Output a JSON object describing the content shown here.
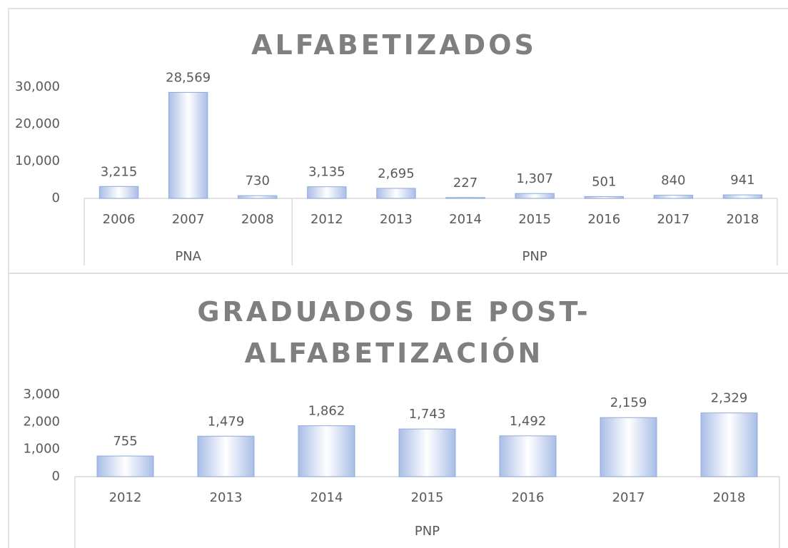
{
  "chart_data": [
    {
      "type": "bar",
      "title": "ALFABETIZADOS",
      "groups": [
        {
          "name": "PNA",
          "categories": [
            "2006",
            "2007",
            "2008"
          ]
        },
        {
          "name": "PNP",
          "categories": [
            "2012",
            "2013",
            "2014",
            "2015",
            "2016",
            "2017",
            "2018"
          ]
        }
      ],
      "values": [
        3215,
        28569,
        730,
        3135,
        2695,
        227,
        1307,
        501,
        840,
        941
      ],
      "value_labels": [
        "3,215",
        "28,569",
        "730",
        "3,135",
        "2,695",
        "227",
        "1,307",
        "501",
        "840",
        "941"
      ],
      "color": "#8faadc",
      "ylim": [
        0,
        30000
      ],
      "yticks": [
        0,
        {
          "value": 10000,
          "label": "10,000"
        },
        {
          "value": 20000,
          "label": "20,000"
        },
        {
          "value": 30000,
          "label": "30,000"
        }
      ],
      "grid": false
    },
    {
      "type": "bar",
      "title": "GRADUADOS DE POST-ALFABETIZACIÓN",
      "groups": [
        {
          "name": "PNP",
          "categories": [
            "2012",
            "2013",
            "2014",
            "2015",
            "2016",
            "2017",
            "2018"
          ]
        }
      ],
      "values": [
        755,
        1479,
        1862,
        1743,
        1492,
        2159,
        2329
      ],
      "value_labels": [
        "755",
        "1,479",
        "1,862",
        "1,743",
        "1,492",
        "2,159",
        "2,329"
      ],
      "color": "#8faadc",
      "ylim": [
        0,
        3000
      ],
      "yticks": [
        0,
        {
          "value": 1000,
          "label": "1,000"
        },
        {
          "value": 2000,
          "label": "2,000"
        },
        {
          "value": 3000,
          "label": "3,000"
        }
      ],
      "grid": false
    }
  ]
}
